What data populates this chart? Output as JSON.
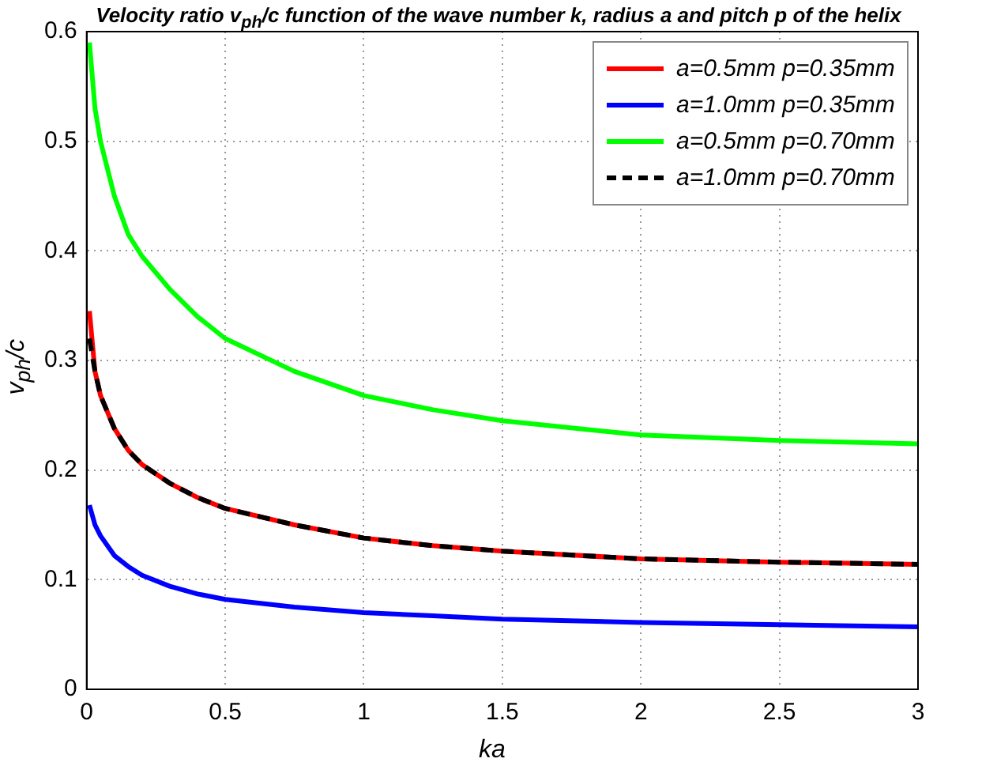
{
  "chart_data": {
    "type": "line",
    "title": "Velocity ratio v$_{ph}$/c function of the wave number k, radius a and pitch p of the helix",
    "xlabel": "ka",
    "ylabel": "v$_{ph}$/c",
    "xlim": [
      0,
      3
    ],
    "xticks": [
      0,
      0.5,
      1,
      1.5,
      2,
      2.5,
      3
    ],
    "ylim": [
      0,
      0.6
    ],
    "yticks": [
      0,
      0.1,
      0.2,
      0.3,
      0.4,
      0.5,
      0.6
    ],
    "grid": true,
    "legend": "top right",
    "series": [
      {
        "name": "a=0.5mm p=0.35mm",
        "color": "#ff0000",
        "line_style": "solid",
        "x": [
          0.01,
          0.03,
          0.05,
          0.1,
          0.15,
          0.2,
          0.3,
          0.4,
          0.5,
          0.75,
          1,
          1.25,
          1.5,
          2,
          2.5,
          3
        ],
        "values": [
          0.345,
          0.29,
          0.268,
          0.238,
          0.218,
          0.205,
          0.188,
          0.175,
          0.165,
          0.15,
          0.138,
          0.131,
          0.126,
          0.119,
          0.116,
          0.114
        ]
      },
      {
        "name": "a=1.0mm p=0.35mm",
        "color": "#0000ff",
        "line_style": "solid",
        "x": [
          0.01,
          0.03,
          0.05,
          0.1,
          0.15,
          0.2,
          0.3,
          0.4,
          0.5,
          0.75,
          1,
          1.25,
          1.5,
          2,
          2.5,
          3
        ],
        "values": [
          0.168,
          0.15,
          0.14,
          0.122,
          0.112,
          0.104,
          0.094,
          0.087,
          0.082,
          0.075,
          0.07,
          0.067,
          0.064,
          0.061,
          0.059,
          0.057
        ]
      },
      {
        "name": "a=0.5mm p=0.70mm",
        "color": "#00ff00",
        "line_style": "solid",
        "x": [
          0.01,
          0.03,
          0.05,
          0.1,
          0.15,
          0.2,
          0.3,
          0.4,
          0.5,
          0.75,
          1,
          1.25,
          1.5,
          2,
          2.5,
          3
        ],
        "values": [
          0.59,
          0.53,
          0.5,
          0.45,
          0.415,
          0.395,
          0.365,
          0.34,
          0.32,
          0.29,
          0.268,
          0.255,
          0.245,
          0.232,
          0.227,
          0.224
        ]
      },
      {
        "name": "a=1.0mm p=0.70mm",
        "color": "#000000",
        "line_style": "dashed",
        "x": [
          0.01,
          0.03,
          0.05,
          0.1,
          0.15,
          0.2,
          0.3,
          0.4,
          0.5,
          0.75,
          1,
          1.25,
          1.5,
          2,
          2.5,
          3
        ],
        "values": [
          0.32,
          0.29,
          0.268,
          0.238,
          0.218,
          0.205,
          0.188,
          0.175,
          0.165,
          0.15,
          0.138,
          0.131,
          0.126,
          0.119,
          0.116,
          0.114
        ]
      }
    ]
  }
}
